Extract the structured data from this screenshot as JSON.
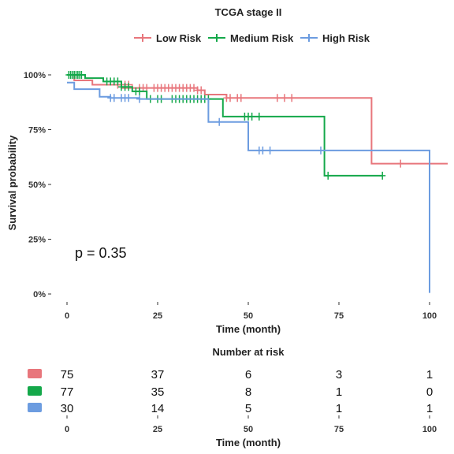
{
  "colors": {
    "low": "#E8767C",
    "medium": "#14A84A",
    "high": "#6C9CE0"
  },
  "chart_data": [
    {
      "type": "line",
      "subtype": "kaplan-meier step",
      "title": "TCGA stage II",
      "xlabel": "Time (month)",
      "ylabel": "Survival probability",
      "xlim": [
        -3,
        105
      ],
      "ylim": [
        0,
        1
      ],
      "xticks": [
        0,
        25,
        50,
        75,
        100
      ],
      "yticks": [
        0,
        0.25,
        0.5,
        0.75,
        1.0
      ],
      "xtick_labels": [
        "0",
        "25",
        "50",
        "75",
        "100"
      ],
      "ytick_labels": [
        "0%",
        "25%",
        "50%",
        "75%",
        "100%"
      ],
      "grid": false,
      "legend_position": "top",
      "annotation": "p = 0.35",
      "series": [
        {
          "name": "Low Risk",
          "color_key": "low",
          "steps": [
            [
              0,
              1.0
            ],
            [
              2,
              0.975
            ],
            [
              7,
              0.955
            ],
            [
              15,
              0.94
            ],
            [
              36,
              0.93
            ],
            [
              38,
              0.91
            ],
            [
              44,
              0.895
            ],
            [
              84,
              0.595
            ],
            [
              105,
              0.595
            ]
          ],
          "censor": [
            [
              14,
              0.955
            ],
            [
              15,
              0.955
            ],
            [
              16,
              0.955
            ],
            [
              17,
              0.955
            ],
            [
              18,
              0.94
            ],
            [
              20,
              0.94
            ],
            [
              21,
              0.94
            ],
            [
              22,
              0.94
            ],
            [
              24,
              0.94
            ],
            [
              25,
              0.94
            ],
            [
              26,
              0.94
            ],
            [
              27,
              0.94
            ],
            [
              28,
              0.94
            ],
            [
              29,
              0.94
            ],
            [
              30,
              0.94
            ],
            [
              31,
              0.94
            ],
            [
              32,
              0.94
            ],
            [
              33,
              0.94
            ],
            [
              34,
              0.94
            ],
            [
              35,
              0.94
            ],
            [
              36,
              0.93
            ],
            [
              37,
              0.93
            ],
            [
              44,
              0.895
            ],
            [
              45,
              0.895
            ],
            [
              47,
              0.895
            ],
            [
              48,
              0.895
            ],
            [
              58,
              0.895
            ],
            [
              60,
              0.895
            ],
            [
              62,
              0.895
            ],
            [
              92,
              0.595
            ]
          ]
        },
        {
          "name": "Medium Risk",
          "color_key": "medium",
          "steps": [
            [
              0,
              1.0
            ],
            [
              5,
              0.985
            ],
            [
              10,
              0.97
            ],
            [
              15,
              0.945
            ],
            [
              18,
              0.925
            ],
            [
              22,
              0.89
            ],
            [
              43,
              0.81
            ],
            [
              71,
              0.54
            ],
            [
              87,
              0.54
            ]
          ],
          "censor": [
            [
              0.5,
              1.0
            ],
            [
              1,
              1.0
            ],
            [
              1.5,
              1.0
            ],
            [
              2,
              1.0
            ],
            [
              2.5,
              1.0
            ],
            [
              3,
              1.0
            ],
            [
              3.5,
              1.0
            ],
            [
              4,
              1.0
            ],
            [
              11,
              0.97
            ],
            [
              12,
              0.97
            ],
            [
              13,
              0.97
            ],
            [
              14,
              0.97
            ],
            [
              15,
              0.945
            ],
            [
              16,
              0.945
            ],
            [
              17,
              0.945
            ],
            [
              19,
              0.925
            ],
            [
              20,
              0.925
            ],
            [
              23,
              0.89
            ],
            [
              25,
              0.89
            ],
            [
              26,
              0.89
            ],
            [
              29,
              0.89
            ],
            [
              30,
              0.89
            ],
            [
              31,
              0.89
            ],
            [
              32,
              0.89
            ],
            [
              33,
              0.89
            ],
            [
              34,
              0.89
            ],
            [
              35,
              0.89
            ],
            [
              36,
              0.89
            ],
            [
              37,
              0.89
            ],
            [
              38,
              0.89
            ],
            [
              39,
              0.89
            ],
            [
              49,
              0.81
            ],
            [
              50,
              0.81
            ],
            [
              51,
              0.81
            ],
            [
              53,
              0.81
            ],
            [
              72,
              0.54
            ],
            [
              87,
              0.54
            ]
          ]
        },
        {
          "name": "High Risk",
          "color_key": "high",
          "steps": [
            [
              0,
              0.965
            ],
            [
              2,
              0.935
            ],
            [
              9,
              0.9
            ],
            [
              12,
              0.895
            ],
            [
              20,
              0.89
            ],
            [
              39,
              0.785
            ],
            [
              50,
              0.655
            ],
            [
              100,
              0.005
            ]
          ],
          "censor": [
            [
              12,
              0.895
            ],
            [
              13,
              0.895
            ],
            [
              15,
              0.895
            ],
            [
              16,
              0.895
            ],
            [
              17,
              0.895
            ],
            [
              20,
              0.89
            ],
            [
              42,
              0.785
            ],
            [
              53,
              0.655
            ],
            [
              54,
              0.655
            ],
            [
              56,
              0.655
            ],
            [
              70,
              0.655
            ]
          ]
        }
      ]
    },
    {
      "type": "table",
      "title": "Number at risk",
      "xlabel": "Time (month)",
      "xticks": [
        0,
        25,
        50,
        75,
        100
      ],
      "xtick_labels": [
        "0",
        "25",
        "50",
        "75",
        "100"
      ],
      "rows": [
        {
          "color_key": "low",
          "values": [
            "75",
            "37",
            "6",
            "3",
            "1"
          ]
        },
        {
          "color_key": "medium",
          "values": [
            "77",
            "35",
            "8",
            "1",
            "0"
          ]
        },
        {
          "color_key": "high",
          "values": [
            "30",
            "14",
            "5",
            "1",
            "1"
          ]
        }
      ]
    }
  ]
}
